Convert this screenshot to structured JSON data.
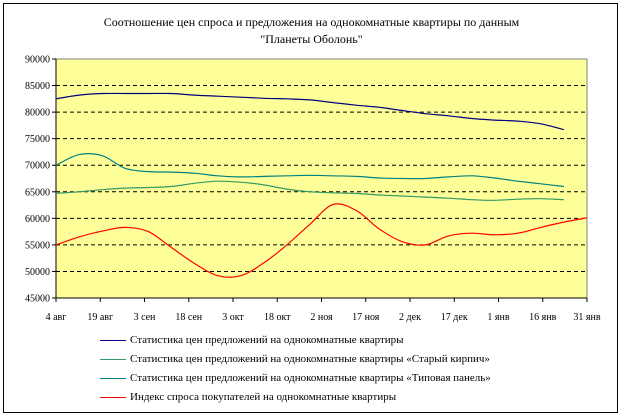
{
  "chart_data": {
    "type": "line",
    "title_lines": [
      "Соотношение цен спроса и предложения на однокомнатные квартиры по данным",
      "\"Планеты Оболонь\""
    ],
    "xlabel": "",
    "ylabel": "",
    "ylim": [
      45000,
      90000
    ],
    "y_ticks": [
      "45000",
      "50000",
      "55000",
      "60000",
      "65000",
      "70000",
      "75000",
      "80000",
      "85000",
      "90000"
    ],
    "x_ticks": [
      "4 авг",
      "19 авг",
      "3 сен",
      "18 сен",
      "3 окт",
      "18 окт",
      "2 ноя",
      "17 ноя",
      "2 дек",
      "17 дек",
      "1 янв",
      "16 янв",
      "31 янв"
    ],
    "grid": "horizontal dashed",
    "legend_position": "bottom",
    "plot_background": "#ffff99",
    "series": [
      {
        "name": "Статистика цен предложений на однокомнатные квартиры",
        "color": "#000080",
        "points": [
          [
            0,
            82500
          ],
          [
            1,
            83200
          ],
          [
            2,
            83500
          ],
          [
            3,
            83500
          ],
          [
            4,
            83500
          ],
          [
            5,
            83500
          ],
          [
            6,
            83200
          ],
          [
            7,
            83000
          ],
          [
            8,
            82800
          ],
          [
            9,
            82600
          ],
          [
            10,
            82500
          ],
          [
            11,
            82300
          ],
          [
            12,
            81800
          ],
          [
            13,
            81300
          ],
          [
            14,
            80900
          ],
          [
            15,
            80300
          ],
          [
            16,
            79700
          ],
          [
            17,
            79300
          ],
          [
            18,
            78800
          ],
          [
            19,
            78500
          ],
          [
            20,
            78300
          ],
          [
            21,
            77800
          ],
          [
            22,
            76700
          ]
        ]
      },
      {
        "name": "Статистика цен предложений на однокомнатные квартиры «Старый кирпич»",
        "color": "#339966",
        "points": [
          [
            0,
            64700
          ],
          [
            1,
            65000
          ],
          [
            2,
            65400
          ],
          [
            3,
            65700
          ],
          [
            4,
            65800
          ],
          [
            5,
            66000
          ],
          [
            6,
            66600
          ],
          [
            7,
            67000
          ],
          [
            8,
            66800
          ],
          [
            9,
            66300
          ],
          [
            10,
            65500
          ],
          [
            11,
            65000
          ],
          [
            12,
            64800
          ],
          [
            13,
            64700
          ],
          [
            14,
            64400
          ],
          [
            15,
            64200
          ],
          [
            16,
            64000
          ],
          [
            17,
            63800
          ],
          [
            18,
            63500
          ],
          [
            19,
            63400
          ],
          [
            20,
            63600
          ],
          [
            21,
            63700
          ],
          [
            22,
            63500
          ]
        ]
      },
      {
        "name": "Статистика цен предложений на однокомнатные квартиры «Типовая панель»",
        "color": "#008080",
        "points": [
          [
            0,
            70000
          ],
          [
            1,
            72000
          ],
          [
            2,
            71800
          ],
          [
            3,
            69400
          ],
          [
            4,
            68800
          ],
          [
            5,
            68700
          ],
          [
            6,
            68500
          ],
          [
            7,
            68000
          ],
          [
            8,
            67800
          ],
          [
            9,
            67900
          ],
          [
            10,
            68000
          ],
          [
            11,
            68100
          ],
          [
            12,
            68000
          ],
          [
            13,
            67900
          ],
          [
            14,
            67600
          ],
          [
            15,
            67500
          ],
          [
            16,
            67500
          ],
          [
            17,
            67800
          ],
          [
            18,
            68000
          ],
          [
            19,
            67600
          ],
          [
            20,
            67000
          ],
          [
            21,
            66500
          ],
          [
            22,
            66000
          ]
        ]
      },
      {
        "name": "Индекс спроса покупателей на однокомнатные квартиры",
        "color": "#ff0000",
        "points": [
          [
            0,
            55000
          ],
          [
            1,
            56500
          ],
          [
            2,
            57600
          ],
          [
            3,
            58300
          ],
          [
            4,
            57500
          ],
          [
            5,
            54500
          ],
          [
            6,
            51500
          ],
          [
            7,
            49200
          ],
          [
            8,
            49200
          ],
          [
            9,
            51600
          ],
          [
            10,
            55000
          ],
          [
            11,
            58900
          ],
          [
            12,
            62600
          ],
          [
            13,
            61500
          ],
          [
            14,
            58000
          ],
          [
            15,
            55600
          ],
          [
            16,
            55000
          ],
          [
            17,
            56700
          ],
          [
            18,
            57200
          ],
          [
            19,
            56900
          ],
          [
            20,
            57200
          ],
          [
            21,
            58300
          ],
          [
            22,
            59300
          ],
          [
            23,
            60100
          ]
        ]
      }
    ],
    "x_max": 23
  }
}
